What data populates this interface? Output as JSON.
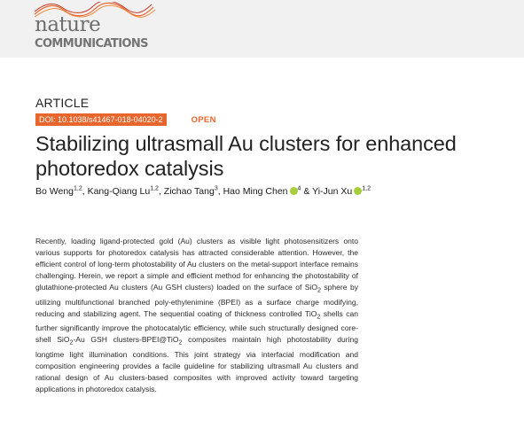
{
  "journal": {
    "logo_top": "nature",
    "logo_bottom": "COMMUNICATIONS"
  },
  "article": {
    "type": "ARTICLE",
    "doi": "DOI: 10.1038/s41467-018-04020-2",
    "access": "OPEN",
    "title": "Stabilizing ultrasmall Au clusters for enhanced photoredox catalysis"
  },
  "authors": [
    {
      "name": "Bo Weng",
      "sup": "1,2",
      "orcid": false
    },
    {
      "name": "Kang-Qiang Lu",
      "sup": "1,2",
      "orcid": false
    },
    {
      "name": "Zichao Tang",
      "sup": "3",
      "orcid": false
    },
    {
      "name": "Hao Ming Chen",
      "sup": "4",
      "orcid": true
    },
    {
      "name": "Yi-Jun Xu",
      "sup": "1,2",
      "orcid": true
    }
  ],
  "author_sep": ", ",
  "author_and": " & ",
  "abstract": [
    "Recently, loading ligand-protected gold (Au) clusters as visible light photosensitizers onto various supports for photoredox catalysis has attracted considerable attention. However, the efficient control of long-term photostability of Au clusters on the metal-support interface remains challenging. Herein, we report a simple and efficient method for enhancing the photostability of glutathione-protected Au clusters (Au GSH clusters) loaded on the surface of SiO",
    "2",
    " sphere by utilizing multifunctional branched poly-ethylenimine (BPEI) as a surface charge modifying, reducing and stabilizing agent. The sequential coating of thickness controlled TiO",
    "2",
    " shells can further significantly improve the photocatalytic efficiency, while such structurally designed core-shell SiO",
    "2",
    "-Au GSH clusters-BPEI@TiO",
    "2",
    " composites maintain high photostability during longtime light illumination conditions. This joint strategy via interfacial modification and composition engineering provides a facile guideline for stabilizing ultrasmall Au clusters and rational design of Au clusters-based composites with improved activity toward targeting applications in photoredox catalysis."
  ],
  "colors": {
    "accent": "#e8652b",
    "orcid": "#a6ce39",
    "header_bg": "#f1f1f1"
  },
  "icons": [
    "wave-logo-icon",
    "orcid-icon"
  ]
}
